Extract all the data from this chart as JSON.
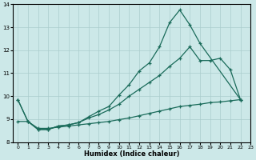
{
  "xlabel": "Humidex (Indice chaleur)",
  "xlim": [
    -0.5,
    23
  ],
  "ylim": [
    8,
    14
  ],
  "yticks": [
    8,
    9,
    10,
    11,
    12,
    13,
    14
  ],
  "xticks": [
    0,
    1,
    2,
    3,
    4,
    5,
    6,
    7,
    8,
    9,
    10,
    11,
    12,
    13,
    14,
    15,
    16,
    17,
    18,
    19,
    20,
    21,
    22,
    23
  ],
  "bg_color": "#cce8e8",
  "grid_color": "#aacccc",
  "line_color": "#1a6b5a",
  "line1_x": [
    0,
    1,
    2,
    3,
    4,
    5,
    6,
    7,
    8,
    9,
    10,
    11,
    12,
    13,
    14,
    15,
    16,
    17,
    18,
    22
  ],
  "line1_y": [
    9.85,
    8.9,
    8.55,
    8.55,
    8.7,
    8.75,
    8.85,
    9.1,
    9.35,
    9.55,
    10.05,
    10.5,
    11.1,
    11.45,
    12.15,
    13.2,
    13.75,
    13.1,
    12.3,
    9.85
  ],
  "line2_x": [
    0,
    1,
    2,
    3,
    4,
    5,
    6,
    7,
    8,
    9,
    10,
    11,
    12,
    13,
    14,
    15,
    16,
    17,
    18,
    19,
    20,
    21,
    22
  ],
  "line2_y": [
    9.85,
    8.9,
    8.55,
    8.55,
    8.7,
    8.75,
    8.85,
    9.05,
    9.2,
    9.4,
    9.65,
    10.0,
    10.3,
    10.6,
    10.9,
    11.3,
    11.65,
    12.15,
    11.55,
    11.55,
    11.65,
    11.15,
    9.85
  ],
  "line3_x": [
    0,
    1,
    2,
    3,
    4,
    5,
    6,
    7,
    8,
    9,
    10,
    11,
    12,
    13,
    14,
    15,
    16,
    17,
    18,
    19,
    20,
    21,
    22
  ],
  "line3_y": [
    8.9,
    8.9,
    8.6,
    8.6,
    8.65,
    8.7,
    8.75,
    8.8,
    8.85,
    8.9,
    8.98,
    9.05,
    9.15,
    9.25,
    9.35,
    9.45,
    9.55,
    9.6,
    9.65,
    9.72,
    9.75,
    9.8,
    9.85
  ]
}
